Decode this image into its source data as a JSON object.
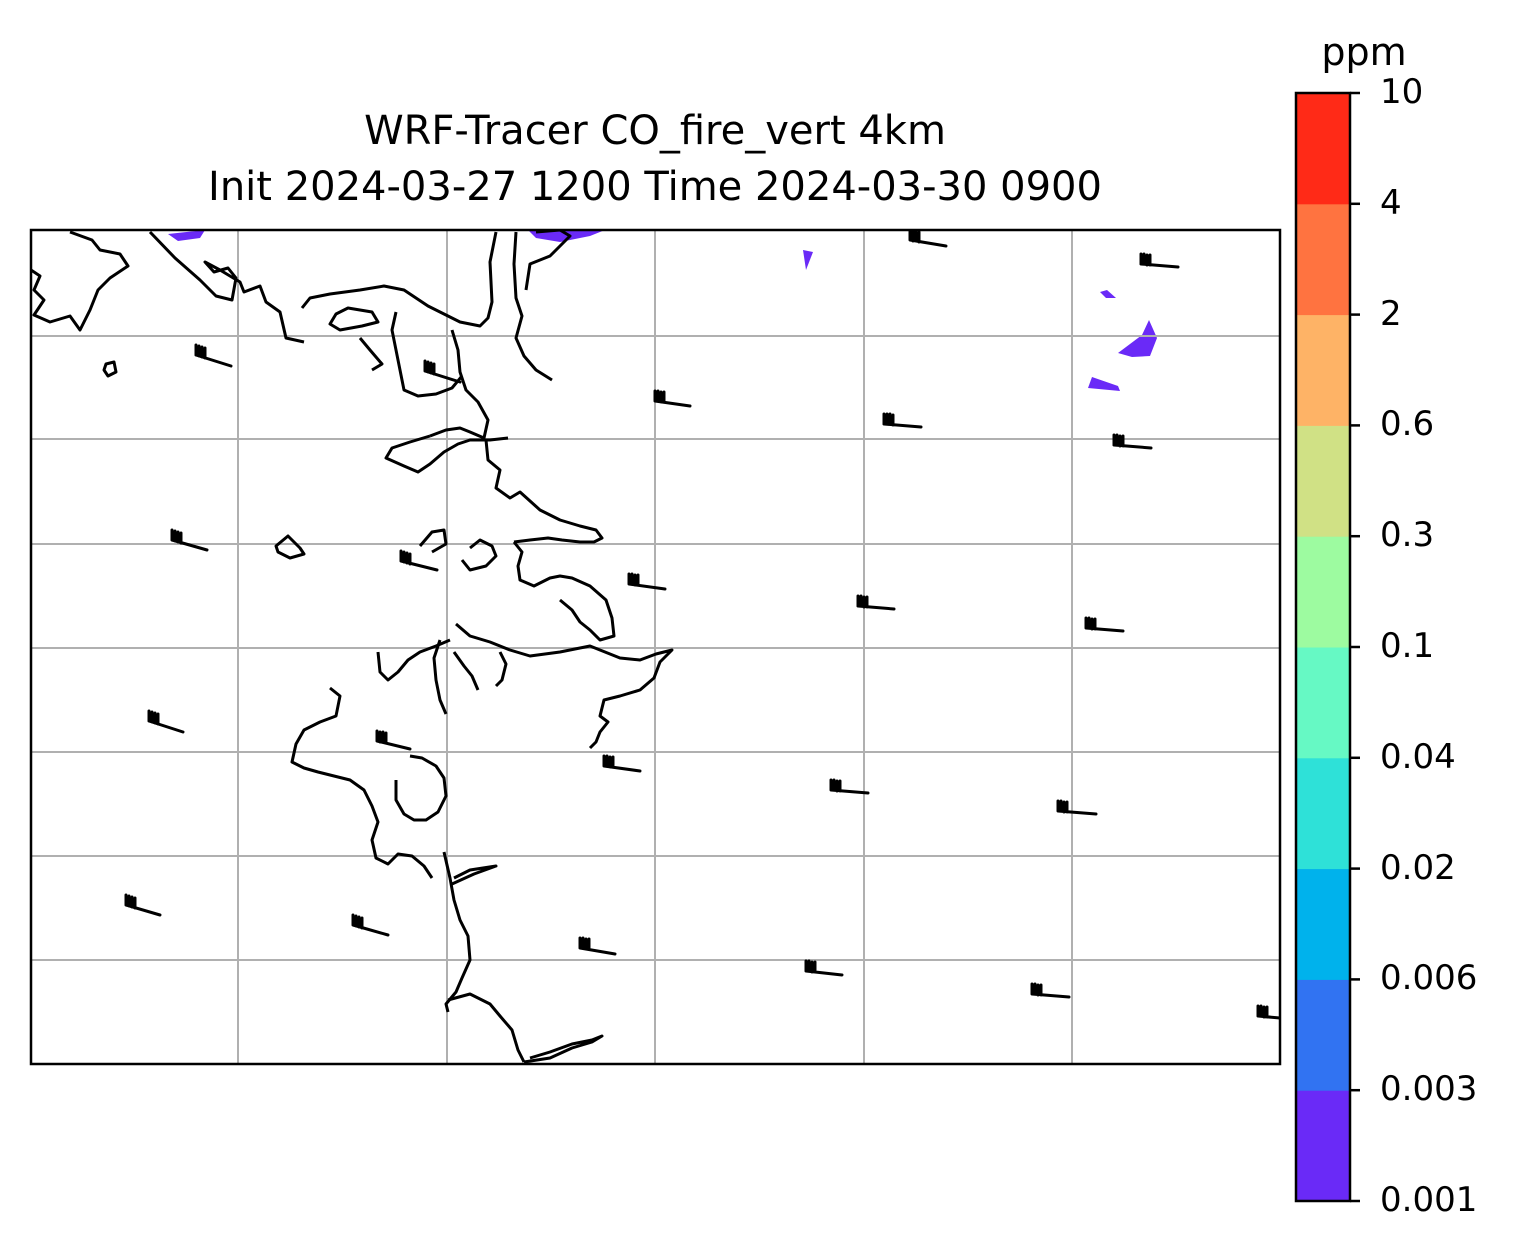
{
  "title": {
    "line1": "WRF-Tracer CO_fire_vert 4km",
    "line2": "Init 2024-03-27 1200 Time 2024-03-30 0900"
  },
  "colorbar": {
    "unit": "ppm",
    "levels": [
      "0.001",
      "0.003",
      "0.006",
      "0.02",
      "0.04",
      "0.1",
      "0.3",
      "0.6",
      "2",
      "4",
      "10"
    ],
    "colors": [
      "#6a2af7",
      "#3173f2",
      "#00b2ec",
      "#2ee1d8",
      "#66f9c4",
      "#9dfba0",
      "#d0e185",
      "#feb366",
      "#ff7340",
      "#ff2a17"
    ]
  },
  "map": {
    "gridlines": true,
    "grid_color": "#b0b0b0",
    "coastline_color": "#000000",
    "tracer_fill_color": "#6a2af7",
    "overlay": "wind-barbs"
  }
}
